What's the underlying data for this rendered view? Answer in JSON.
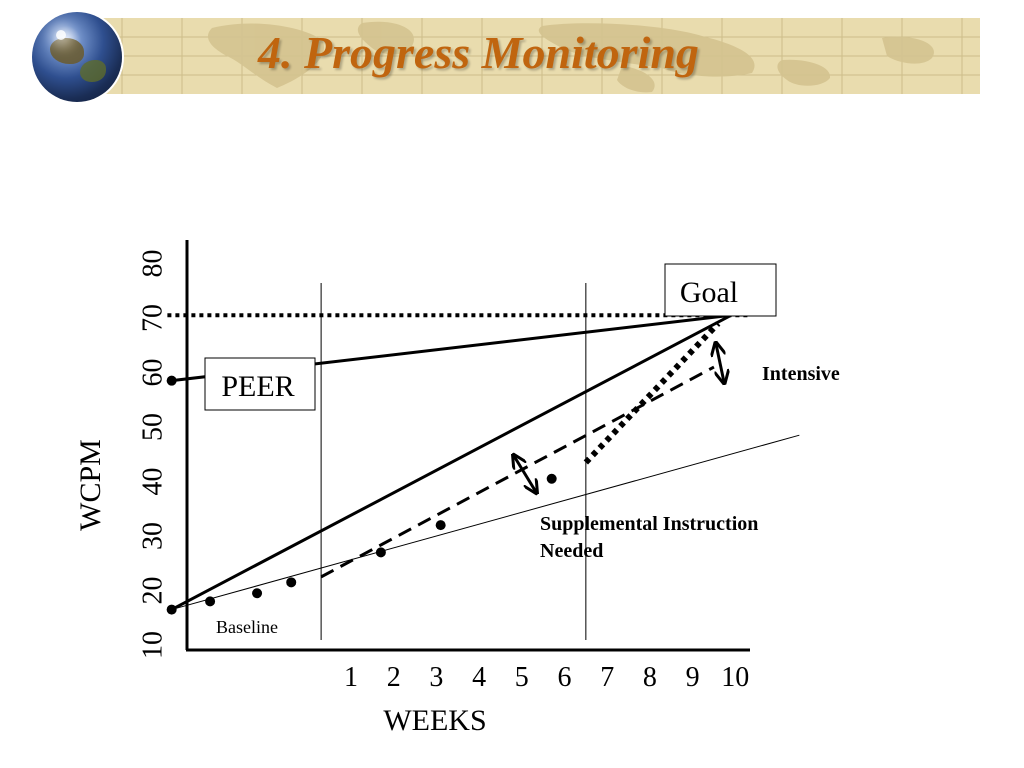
{
  "slide": {
    "title": "4. Progress Monitoring"
  },
  "colors": {
    "title": "#c0650f",
    "banner": "#e9dcae"
  },
  "chart_data": {
    "type": "line",
    "title": "",
    "xlabel": "WEEKS",
    "ylabel": "WCPM",
    "x_ticks": [
      "1",
      "2",
      "3",
      "4",
      "5",
      "6",
      "7",
      "8",
      "9",
      "10"
    ],
    "y_ticks": [
      "10",
      "20",
      "30",
      "40",
      "50",
      "60",
      "70",
      "80"
    ],
    "ylim": [
      10,
      80
    ],
    "xlim": [
      -3.3,
      10
    ],
    "grid": false,
    "series": [
      {
        "style": "dotted-horizontal",
        "points": [
          [
            -3.3,
            70.5
          ],
          [
            10.3,
            70.5
          ]
        ]
      },
      {
        "style": "solid",
        "points": [
          [
            -3.2,
            58.5
          ],
          [
            9.9,
            70.5
          ]
        ]
      },
      {
        "style": "solid",
        "points": [
          [
            -3.2,
            16.5
          ],
          [
            9.9,
            70.5
          ]
        ]
      },
      {
        "style": "thin",
        "points": [
          [
            -3.2,
            16.5
          ],
          [
            11.5,
            48.5
          ]
        ]
      },
      {
        "style": "dashed",
        "points": [
          [
            0.3,
            22.5
          ],
          [
            9.5,
            61
          ]
        ]
      },
      {
        "style": "dotted-thick",
        "points": [
          [
            6.5,
            43.5
          ],
          [
            9.6,
            69
          ]
        ]
      }
    ],
    "baseline_points": [
      [
        -3.2,
        16.5
      ],
      [
        -2.3,
        18
      ],
      [
        -1.2,
        19.5
      ],
      [
        -0.4,
        21.5
      ]
    ],
    "progress_points": [
      [
        1.7,
        27
      ],
      [
        3.1,
        32
      ],
      [
        5.7,
        40.5
      ]
    ],
    "peer_point": [
      -3.2,
      58.5
    ],
    "week_dividers": [
      0.3,
      6.5
    ],
    "boxes": {
      "goal": "Goal",
      "peer": "PEER"
    },
    "annotations": {
      "intensive": "Intensive",
      "supplemental_line1": "Supplemental Instruction",
      "supplemental_line2": "Needed",
      "baseline": "Baseline"
    }
  }
}
